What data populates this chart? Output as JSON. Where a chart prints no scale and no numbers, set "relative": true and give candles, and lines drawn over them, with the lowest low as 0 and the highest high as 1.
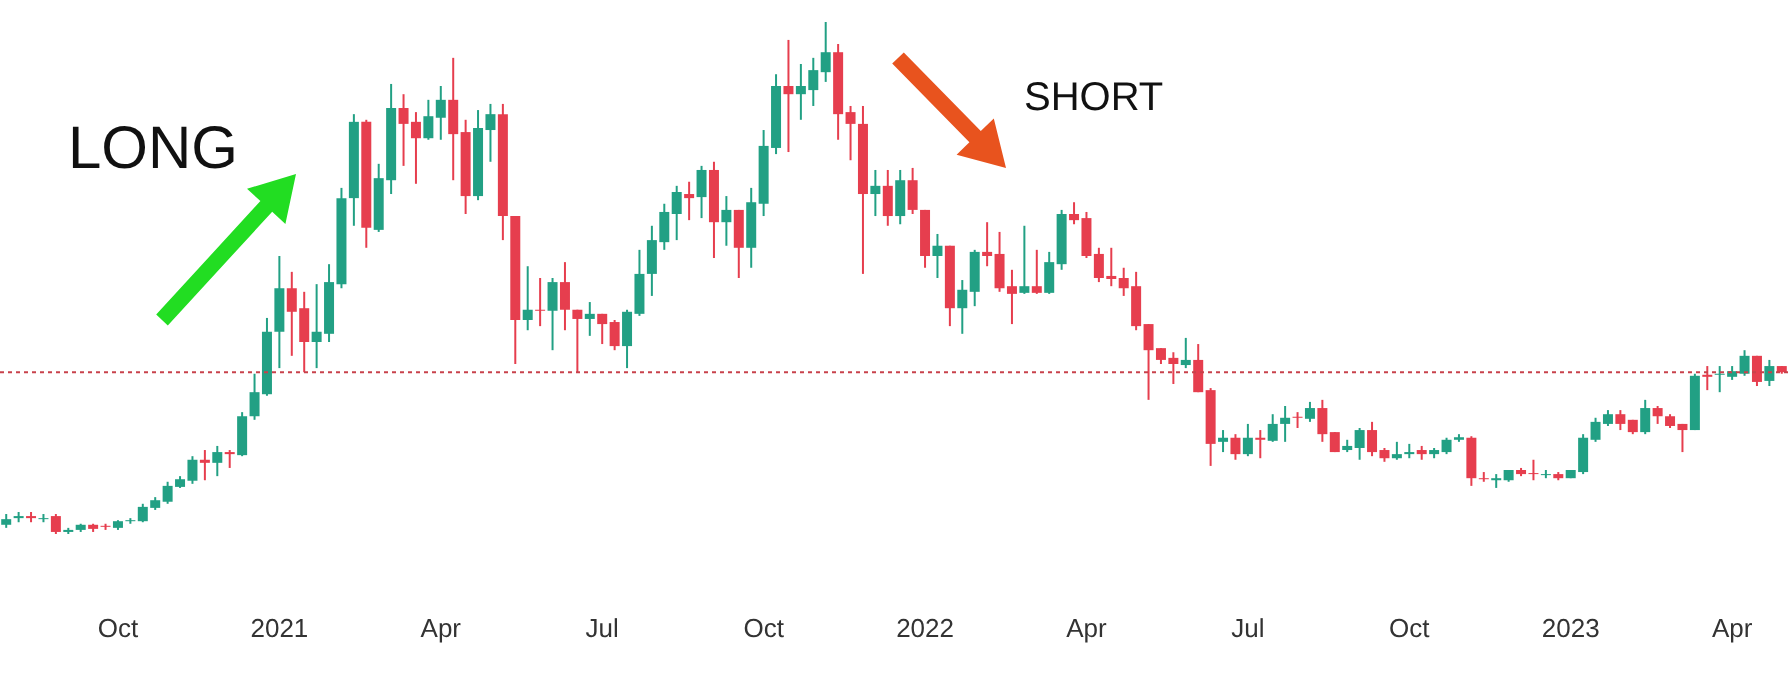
{
  "chart_data": {
    "type": "candlestick",
    "relative": true,
    "categories": [
      null,
      null,
      null,
      null,
      null,
      null,
      null,
      null,
      null,
      "Oct",
      null,
      null,
      null,
      null,
      null,
      null,
      null,
      null,
      null,
      null,
      null,
      null,
      "2021",
      null,
      null,
      null,
      null,
      null,
      null,
      null,
      null,
      null,
      null,
      null,
      null,
      "Apr",
      null,
      null,
      null,
      null,
      null,
      null,
      null,
      null,
      null,
      null,
      null,
      null,
      "Jul",
      null,
      null,
      null,
      null,
      null,
      null,
      null,
      null,
      null,
      null,
      null,
      null,
      "Oct",
      null,
      null,
      null,
      null,
      null,
      null,
      null,
      null,
      null,
      null,
      null,
      null,
      "2022",
      null,
      null,
      null,
      null,
      null,
      null,
      null,
      null,
      null,
      null,
      null,
      null,
      "Apr",
      null,
      null,
      null,
      null,
      null,
      null,
      null,
      null,
      null,
      null,
      null,
      null,
      "Jul",
      null,
      null,
      null,
      null,
      null,
      null,
      null,
      null,
      null,
      null,
      null,
      null,
      "Oct",
      null,
      null,
      null,
      null,
      null,
      null,
      null,
      null,
      null,
      null,
      null,
      null,
      "2023",
      null,
      null,
      null,
      null,
      null,
      null,
      null,
      null,
      null,
      null,
      null,
      null,
      "Apr",
      null,
      null,
      null,
      null
    ],
    "ohlc": [
      [
        0.018,
        0.039,
        0.012,
        0.029
      ],
      [
        0.031,
        0.043,
        0.023,
        0.035
      ],
      [
        0.035,
        0.043,
        0.023,
        0.031
      ],
      [
        0.029,
        0.039,
        0.023,
        0.031
      ],
      [
        0.035,
        0.039,
        0,
        0.004
      ],
      [
        0.004,
        0.012,
        0,
        0.008
      ],
      [
        0.008,
        0.02,
        0.004,
        0.018
      ],
      [
        0.018,
        0.02,
        0.004,
        0.01
      ],
      [
        0.016,
        0.02,
        0.008,
        0.014
      ],
      [
        0.012,
        0.027,
        0.008,
        0.025
      ],
      [
        0.025,
        0.031,
        0.02,
        0.027
      ],
      [
        0.025,
        0.059,
        0.023,
        0.053
      ],
      [
        0.051,
        0.072,
        0.047,
        0.066
      ],
      [
        0.063,
        0.102,
        0.059,
        0.094
      ],
      [
        0.092,
        0.113,
        0.09,
        0.107
      ],
      [
        0.104,
        0.152,
        0.098,
        0.145
      ],
      [
        0.145,
        0.164,
        0.105,
        0.139
      ],
      [
        0.139,
        0.172,
        0.113,
        0.16
      ],
      [
        0.16,
        0.164,
        0.129,
        0.156
      ],
      [
        0.154,
        0.238,
        0.152,
        0.23
      ],
      [
        0.23,
        0.313,
        0.223,
        0.277
      ],
      [
        0.273,
        0.422,
        0.27,
        0.395
      ],
      [
        0.395,
        0.543,
        0.324,
        0.48
      ],
      [
        0.48,
        0.512,
        0.348,
        0.434
      ],
      [
        0.441,
        0.473,
        0.316,
        0.375
      ],
      [
        0.375,
        0.488,
        0.324,
        0.395
      ],
      [
        0.391,
        0.527,
        0.375,
        0.492
      ],
      [
        0.488,
        0.676,
        0.48,
        0.656
      ],
      [
        0.656,
        0.82,
        0.602,
        0.805
      ],
      [
        0.805,
        0.809,
        0.559,
        0.598
      ],
      [
        0.594,
        0.723,
        0.59,
        0.695
      ],
      [
        0.691,
        0.879,
        0.664,
        0.832
      ],
      [
        0.832,
        0.859,
        0.719,
        0.801
      ],
      [
        0.805,
        0.824,
        0.684,
        0.773
      ],
      [
        0.773,
        0.848,
        0.77,
        0.816
      ],
      [
        0.813,
        0.875,
        0.77,
        0.848
      ],
      [
        0.848,
        0.93,
        0.691,
        0.781
      ],
      [
        0.785,
        0.809,
        0.625,
        0.66
      ],
      [
        0.66,
        0.828,
        0.652,
        0.793
      ],
      [
        0.789,
        0.84,
        0.727,
        0.82
      ],
      [
        0.82,
        0.84,
        0.574,
        0.621
      ],
      [
        0.621,
        0.621,
        0.332,
        0.418
      ],
      [
        0.418,
        0.523,
        0.398,
        0.438
      ],
      [
        0.438,
        0.5,
        0.406,
        0.436
      ],
      [
        0.436,
        0.5,
        0.359,
        0.492
      ],
      [
        0.492,
        0.531,
        0.398,
        0.438
      ],
      [
        0.438,
        0.438,
        0.316,
        0.42
      ],
      [
        0.42,
        0.453,
        0.387,
        0.43
      ],
      [
        0.43,
        0.43,
        0.371,
        0.41
      ],
      [
        0.414,
        0.418,
        0.359,
        0.367
      ],
      [
        0.367,
        0.438,
        0.324,
        0.434
      ],
      [
        0.43,
        0.555,
        0.426,
        0.508
      ],
      [
        0.508,
        0.602,
        0.465,
        0.574
      ],
      [
        0.57,
        0.645,
        0.555,
        0.629
      ],
      [
        0.625,
        0.68,
        0.574,
        0.668
      ],
      [
        0.664,
        0.688,
        0.613,
        0.656
      ],
      [
        0.658,
        0.719,
        0.617,
        0.711
      ],
      [
        0.711,
        0.727,
        0.539,
        0.609
      ],
      [
        0.609,
        0.66,
        0.563,
        0.633
      ],
      [
        0.633,
        0.633,
        0.5,
        0.559
      ],
      [
        0.559,
        0.676,
        0.52,
        0.648
      ],
      [
        0.645,
        0.789,
        0.621,
        0.758
      ],
      [
        0.754,
        0.898,
        0.742,
        0.875
      ],
      [
        0.875,
        0.965,
        0.746,
        0.859
      ],
      [
        0.859,
        0.918,
        0.809,
        0.875
      ],
      [
        0.867,
        0.93,
        0.836,
        0.906
      ],
      [
        0.902,
        1,
        0.883,
        0.941
      ],
      [
        0.941,
        0.957,
        0.77,
        0.82
      ],
      [
        0.824,
        0.836,
        0.73,
        0.801
      ],
      [
        0.801,
        0.836,
        0.508,
        0.664
      ],
      [
        0.664,
        0.711,
        0.621,
        0.68
      ],
      [
        0.68,
        0.711,
        0.602,
        0.621
      ],
      [
        0.621,
        0.711,
        0.605,
        0.691
      ],
      [
        0.691,
        0.715,
        0.625,
        0.633
      ],
      [
        0.633,
        0.633,
        0.52,
        0.543
      ],
      [
        0.543,
        0.586,
        0.5,
        0.563
      ],
      [
        0.563,
        0.563,
        0.406,
        0.441
      ],
      [
        0.441,
        0.496,
        0.391,
        0.477
      ],
      [
        0.473,
        0.555,
        0.445,
        0.551
      ],
      [
        0.551,
        0.609,
        0.523,
        0.543
      ],
      [
        0.547,
        0.59,
        0.473,
        0.48
      ],
      [
        0.484,
        0.516,
        0.41,
        0.469
      ],
      [
        0.471,
        0.602,
        0.469,
        0.484
      ],
      [
        0.484,
        0.555,
        0.469,
        0.471
      ],
      [
        0.471,
        0.551,
        0.469,
        0.531
      ],
      [
        0.527,
        0.633,
        0.516,
        0.625
      ],
      [
        0.625,
        0.648,
        0.605,
        0.613
      ],
      [
        0.617,
        0.629,
        0.539,
        0.543
      ],
      [
        0.547,
        0.559,
        0.492,
        0.5
      ],
      [
        0.504,
        0.559,
        0.484,
        0.498
      ],
      [
        0.5,
        0.52,
        0.465,
        0.48
      ],
      [
        0.484,
        0.512,
        0.398,
        0.406
      ],
      [
        0.41,
        0.41,
        0.262,
        0.359
      ],
      [
        0.363,
        0.363,
        0.332,
        0.34
      ],
      [
        0.344,
        0.355,
        0.293,
        0.332
      ],
      [
        0.33,
        0.383,
        0.324,
        0.34
      ],
      [
        0.34,
        0.371,
        0.277,
        0.277
      ],
      [
        0.281,
        0.285,
        0.133,
        0.176
      ],
      [
        0.18,
        0.203,
        0.16,
        0.188
      ],
      [
        0.188,
        0.195,
        0.145,
        0.156
      ],
      [
        0.156,
        0.215,
        0.152,
        0.188
      ],
      [
        0.188,
        0.203,
        0.148,
        0.184
      ],
      [
        0.182,
        0.234,
        0.18,
        0.215
      ],
      [
        0.215,
        0.25,
        0.18,
        0.227
      ],
      [
        0.229,
        0.238,
        0.207,
        0.227
      ],
      [
        0.225,
        0.258,
        0.219,
        0.246
      ],
      [
        0.246,
        0.262,
        0.18,
        0.195
      ],
      [
        0.199,
        0.199,
        0.16,
        0.16
      ],
      [
        0.164,
        0.184,
        0.16,
        0.172
      ],
      [
        0.168,
        0.207,
        0.145,
        0.203
      ],
      [
        0.203,
        0.219,
        0.152,
        0.16
      ],
      [
        0.164,
        0.168,
        0.141,
        0.148
      ],
      [
        0.148,
        0.18,
        0.145,
        0.156
      ],
      [
        0.156,
        0.176,
        0.148,
        0.16
      ],
      [
        0.164,
        0.172,
        0.145,
        0.156
      ],
      [
        0.156,
        0.168,
        0.148,
        0.164
      ],
      [
        0.16,
        0.188,
        0.156,
        0.184
      ],
      [
        0.184,
        0.195,
        0.18,
        0.189
      ],
      [
        0.188,
        0.191,
        0.094,
        0.109
      ],
      [
        0.109,
        0.121,
        0.102,
        0.107
      ],
      [
        0.105,
        0.117,
        0.09,
        0.109
      ],
      [
        0.105,
        0.125,
        0.102,
        0.125
      ],
      [
        0.125,
        0.129,
        0.113,
        0.117
      ],
      [
        0.119,
        0.145,
        0.105,
        0.117
      ],
      [
        0.115,
        0.125,
        0.109,
        0.117
      ],
      [
        0.117,
        0.121,
        0.105,
        0.109
      ],
      [
        0.109,
        0.125,
        0.109,
        0.125
      ],
      [
        0.121,
        0.195,
        0.117,
        0.188
      ],
      [
        0.184,
        0.227,
        0.18,
        0.219
      ],
      [
        0.215,
        0.242,
        0.211,
        0.234
      ],
      [
        0.234,
        0.242,
        0.203,
        0.215
      ],
      [
        0.223,
        0.223,
        0.195,
        0.199
      ],
      [
        0.199,
        0.262,
        0.195,
        0.246
      ],
      [
        0.246,
        0.25,
        0.215,
        0.23
      ],
      [
        0.23,
        0.234,
        0.207,
        0.211
      ],
      [
        0.215,
        0.215,
        0.16,
        0.203
      ],
      [
        0.203,
        0.313,
        0.203,
        0.309
      ],
      [
        0.311,
        0.328,
        0.281,
        0.307
      ],
      [
        0.311,
        0.328,
        0.277,
        0.313
      ],
      [
        0.307,
        0.328,
        0.301,
        0.318
      ],
      [
        0.313,
        0.359,
        0.309,
        0.348
      ],
      [
        0.348,
        0.348,
        0.289,
        0.297
      ],
      [
        0.299,
        0.34,
        0.289,
        0.328
      ],
      [
        0.328,
        0.328,
        0.313,
        0.316
      ]
    ],
    "colors": [
      "#22a084",
      "#22a084",
      "#e63e4e",
      "#22a084",
      "#e63e4e",
      "#22a084",
      "#22a084",
      "#e63e4e",
      "#e63e4e",
      "#22a084",
      "#22a084",
      "#22a084",
      "#22a084",
      "#22a084",
      "#22a084",
      "#22a084",
      "#e63e4e",
      "#22a084",
      "#e63e4e",
      "#22a084",
      "#22a084",
      "#22a084",
      "#22a084",
      "#e63e4e",
      "#e63e4e",
      "#22a084",
      "#22a084",
      "#22a084",
      "#22a084",
      "#e63e4e",
      "#22a084",
      "#22a084",
      "#e63e4e",
      "#e63e4e",
      "#22a084",
      "#22a084",
      "#e63e4e",
      "#e63e4e",
      "#22a084",
      "#22a084",
      "#e63e4e",
      "#e63e4e",
      "#22a084",
      "#e63e4e",
      "#22a084",
      "#e63e4e",
      "#e63e4e",
      "#22a084",
      "#e63e4e",
      "#e63e4e",
      "#22a084",
      "#22a084",
      "#22a084",
      "#22a084",
      "#22a084",
      "#e63e4e",
      "#22a084",
      "#e63e4e",
      "#22a084",
      "#e63e4e",
      "#22a084",
      "#22a084",
      "#22a084",
      "#e63e4e",
      "#22a084",
      "#22a084",
      "#22a084",
      "#e63e4e",
      "#e63e4e",
      "#e63e4e",
      "#22a084",
      "#e63e4e",
      "#22a084",
      "#e63e4e",
      "#e63e4e",
      "#22a084",
      "#e63e4e",
      "#22a084",
      "#22a084",
      "#e63e4e",
      "#e63e4e",
      "#e63e4e",
      "#22a084",
      "#e63e4e",
      "#22a084",
      "#22a084",
      "#e63e4e",
      "#e63e4e",
      "#e63e4e",
      "#e63e4e",
      "#e63e4e",
      "#e63e4e",
      "#e63e4e",
      "#e63e4e",
      "#e63e4e",
      "#22a084",
      "#e63e4e",
      "#e63e4e",
      "#22a084",
      "#e63e4e",
      "#22a084",
      "#e63e4e",
      "#22a084",
      "#22a084",
      "#e63e4e",
      "#22a084",
      "#e63e4e",
      "#e63e4e",
      "#22a084",
      "#22a084",
      "#e63e4e",
      "#e63e4e",
      "#22a084",
      "#22a084",
      "#e63e4e",
      "#22a084",
      "#22a084",
      "#22a084",
      "#e63e4e",
      "#e63e4e",
      "#22a084",
      "#22a084",
      "#e63e4e",
      "#e63e4e",
      "#22a084",
      "#e63e4e",
      "#22a084",
      "#22a084",
      "#22a084",
      "#22a084",
      "#e63e4e",
      "#e63e4e",
      "#22a084",
      "#e63e4e",
      "#e63e4e",
      "#e63e4e",
      "#22a084",
      "#e63e4e",
      "#22a084",
      "#22a084",
      "#22a084",
      "#e63e4e",
      "#22a084",
      "#e63e4e"
    ],
    "ref_lines": [
      {
        "axis": "y",
        "value": 0.316,
        "color": "#c8414b",
        "line_style": "dotted"
      }
    ],
    "annotations": [
      "LONG",
      "SHORT"
    ]
  }
}
